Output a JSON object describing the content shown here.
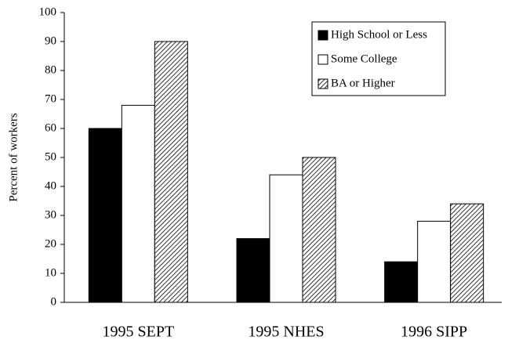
{
  "chart_data": {
    "type": "bar",
    "y_label": "Percent of workers",
    "categories": [
      "1995 SEPT",
      "1995 NHES",
      "1996 SIPP"
    ],
    "series": [
      {
        "name": "High School or Less",
        "color": "#000000",
        "values": [
          60,
          22,
          14
        ]
      },
      {
        "name": "Some College",
        "color": "#ffffff",
        "values": [
          68,
          44,
          28
        ]
      },
      {
        "name": "BA or Higher",
        "color": "#ffffff",
        "hatch": true,
        "values": [
          90,
          50,
          34
        ]
      }
    ],
    "ylim": [
      0,
      100
    ],
    "yticks": [
      0,
      10,
      20,
      30,
      40,
      50,
      60,
      70,
      80,
      90,
      100
    ],
    "grid": false,
    "legend": "upper right"
  }
}
